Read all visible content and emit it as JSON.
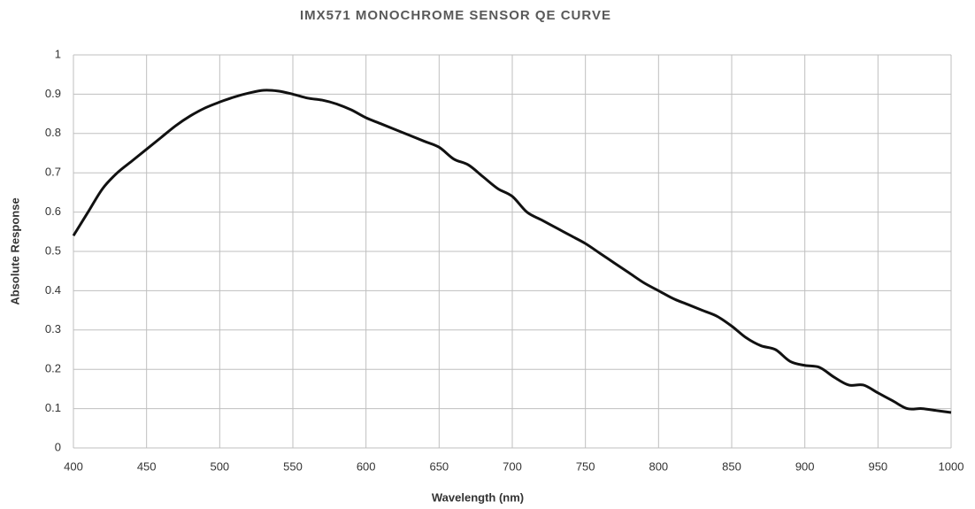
{
  "chart_data": {
    "type": "line",
    "title": "IMX571 MONOCHROME SENSOR QE CURVE",
    "x_label": "Wavelength (nm)",
    "y_label": "Absolute Response",
    "x": [
      400,
      410,
      420,
      430,
      440,
      450,
      460,
      470,
      480,
      490,
      500,
      510,
      520,
      530,
      540,
      550,
      560,
      570,
      580,
      590,
      600,
      610,
      620,
      630,
      640,
      650,
      660,
      670,
      680,
      690,
      700,
      710,
      720,
      730,
      740,
      750,
      760,
      770,
      780,
      790,
      800,
      810,
      820,
      830,
      840,
      850,
      860,
      870,
      880,
      890,
      900,
      910,
      920,
      930,
      940,
      950,
      960,
      970,
      980,
      990,
      1000
    ],
    "series": [
      {
        "name": "QE",
        "color": "#111111",
        "values": [
          0.54,
          0.6,
          0.66,
          0.7,
          0.73,
          0.76,
          0.79,
          0.82,
          0.845,
          0.865,
          0.88,
          0.893,
          0.903,
          0.91,
          0.908,
          0.9,
          0.89,
          0.885,
          0.875,
          0.86,
          0.84,
          0.825,
          0.81,
          0.795,
          0.78,
          0.765,
          0.735,
          0.72,
          0.69,
          0.66,
          0.64,
          0.6,
          0.58,
          0.56,
          0.54,
          0.52,
          0.495,
          0.47,
          0.445,
          0.42,
          0.4,
          0.38,
          0.365,
          0.35,
          0.335,
          0.31,
          0.28,
          0.26,
          0.25,
          0.22,
          0.21,
          0.205,
          0.18,
          0.16,
          0.16,
          0.14,
          0.12,
          0.1,
          0.1,
          0.095,
          0.09
        ]
      }
    ],
    "xlim": [
      400,
      1000
    ],
    "xticks": [
      400,
      450,
      500,
      550,
      600,
      650,
      700,
      750,
      800,
      850,
      900,
      950,
      1000
    ],
    "ylim": [
      0,
      1
    ],
    "yticks": [
      0,
      0.1,
      0.2,
      0.3,
      0.4,
      0.5,
      0.6,
      0.7,
      0.8,
      0.9,
      1
    ],
    "grid": true
  }
}
